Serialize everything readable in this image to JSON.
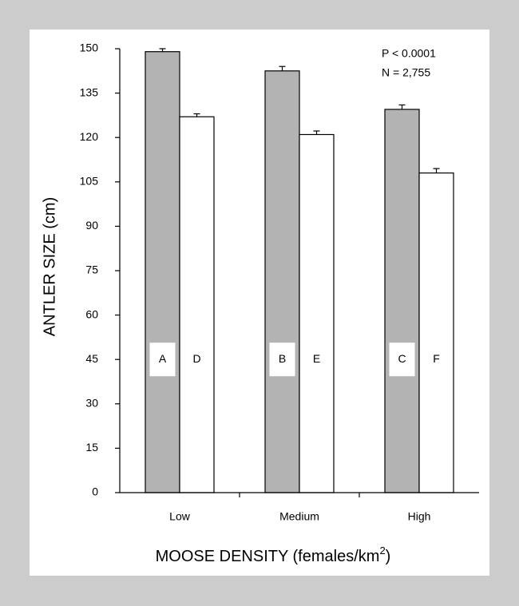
{
  "chart_data": {
    "type": "bar",
    "categories": [
      "Low",
      "Medium",
      "High"
    ],
    "series": [
      {
        "values": [
          149,
          142.5,
          129.5
        ],
        "errors": [
          1.0,
          1.5,
          1.5
        ],
        "color": "#b3b3b3",
        "letters": [
          "A",
          "B",
          "C"
        ]
      },
      {
        "values": [
          127,
          121,
          108
        ],
        "errors": [
          1.0,
          1.2,
          1.5
        ],
        "color": "#ffffff",
        "letters": [
          "D",
          "E",
          "F"
        ]
      }
    ],
    "ylabel": "ANTLER SIZE (cm)",
    "xlabel": "MOOSE DENSITY (females/km",
    "xlabel_sup": "2",
    "xlabel_end": ")",
    "ylim": [
      0,
      150
    ],
    "yticks": [
      0,
      15,
      30,
      45,
      60,
      75,
      90,
      105,
      120,
      135,
      150
    ],
    "letter_y": 45,
    "annotations": [
      "P < 0.0001",
      "N = 2,755"
    ],
    "grid": false,
    "legend": "none"
  }
}
